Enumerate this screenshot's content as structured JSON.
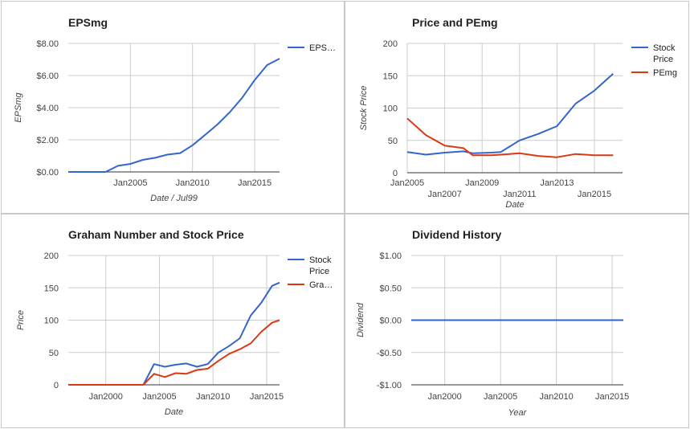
{
  "chart_data": [
    {
      "type": "line",
      "title": "EPSmg",
      "xlabel": "Date / Jul99",
      "ylabel": "EPSmg",
      "xlim": [
        2000,
        2017
      ],
      "ylim": [
        0,
        8
      ],
      "yticks": [
        0,
        2,
        4,
        6,
        8
      ],
      "ytick_labels": [
        "$0.00",
        "$2.00",
        "$4.00",
        "$6.00",
        "$8.00"
      ],
      "xticks": [
        2005,
        2010,
        2015
      ],
      "xtick_labels": [
        "Jan2005",
        "Jan2010",
        "Jan2015"
      ],
      "legend_position": "right",
      "series": [
        {
          "name": "EPS…",
          "color": "#3366cc",
          "x": [
            2000,
            2001,
            2002,
            2003,
            2004,
            2005,
            2006,
            2007,
            2008,
            2009,
            2010,
            2011,
            2012,
            2013,
            2014,
            2015,
            2016,
            2017
          ],
          "y": [
            0,
            0,
            0,
            0,
            0.38,
            0.5,
            0.75,
            0.88,
            1.08,
            1.17,
            1.66,
            2.3,
            2.95,
            3.72,
            4.62,
            5.72,
            6.65,
            7.05
          ]
        }
      ]
    },
    {
      "type": "line",
      "title": "Price and PEmg",
      "xlabel": "Date",
      "ylabel": "Stock Price",
      "xlim": [
        2005,
        2016.5
      ],
      "ylim": [
        0,
        200
      ],
      "yticks": [
        0,
        50,
        100,
        150,
        200
      ],
      "ytick_labels": [
        "0",
        "50",
        "100",
        "150",
        "200"
      ],
      "xticks": [
        2005,
        2007,
        2009,
        2011,
        2013,
        2015
      ],
      "xtick_labels": [
        "Jan2005",
        "Jan2007",
        "Jan2009",
        "Jan2011",
        "Jan2013",
        "Jan2015"
      ],
      "legend_position": "right",
      "series": [
        {
          "name": "Stock Price",
          "color": "#3366cc",
          "x": [
            2005,
            2006,
            2007,
            2008,
            2008.5,
            2009.5,
            2010,
            2011,
            2012,
            2013,
            2014,
            2015,
            2016
          ],
          "y": [
            32,
            28,
            31,
            33,
            30,
            31,
            32,
            50,
            60,
            72,
            107,
            127,
            153
          ]
        },
        {
          "name": "PEmg",
          "color": "#dc3912",
          "x": [
            2005,
            2006,
            2007,
            2008,
            2008.5,
            2009.5,
            2010,
            2011,
            2012,
            2013,
            2014,
            2015,
            2016
          ],
          "y": [
            84,
            58,
            42,
            38,
            27,
            27,
            28,
            30,
            26,
            24,
            29,
            27,
            27
          ]
        }
      ]
    },
    {
      "type": "line",
      "title": "Graham Number and Stock Price",
      "xlabel": "Date",
      "ylabel": "Price",
      "xlim": [
        1996.5,
        2016.2
      ],
      "ylim": [
        0,
        200
      ],
      "yticks": [
        0,
        50,
        100,
        150,
        200
      ],
      "ytick_labels": [
        "0",
        "50",
        "100",
        "150",
        "200"
      ],
      "xticks": [
        2000,
        2005,
        2010,
        2015
      ],
      "xtick_labels": [
        "Jan2000",
        "Jan2005",
        "Jan2010",
        "Jan2015"
      ],
      "legend_position": "right",
      "series": [
        {
          "name": "Stock Price",
          "color": "#3366cc",
          "x": [
            1996.5,
            2003.5,
            2004.5,
            2005.5,
            2006.5,
            2007.5,
            2008.5,
            2009.5,
            2010.5,
            2011.5,
            2012.5,
            2013.5,
            2014.5,
            2015.5,
            2016.2
          ],
          "y": [
            0,
            0,
            32,
            28,
            31,
            33,
            28,
            32,
            50,
            60,
            72,
            107,
            127,
            153,
            158
          ]
        },
        {
          "name": "Gra…",
          "color": "#dc3912",
          "x": [
            1996.5,
            2003.5,
            2004.5,
            2005.5,
            2006.5,
            2007.5,
            2008.5,
            2009.5,
            2010.5,
            2011.5,
            2012.5,
            2013.5,
            2014.5,
            2015.5,
            2016.2
          ],
          "y": [
            0,
            0,
            17,
            12,
            18,
            17,
            23,
            25,
            37,
            48,
            55,
            64,
            82,
            96,
            100
          ]
        }
      ]
    },
    {
      "type": "line",
      "title": "Dividend History",
      "xlabel": "Year",
      "ylabel": "Dividend",
      "xlim": [
        1997,
        2016
      ],
      "ylim": [
        -1,
        1
      ],
      "yticks": [
        -1,
        -0.5,
        0,
        0.5,
        1
      ],
      "ytick_labels": [
        "-$1.00",
        "-$0.50",
        "$0.00",
        "$0.50",
        "$1.00"
      ],
      "xticks": [
        2000,
        2005,
        2010,
        2015
      ],
      "xtick_labels": [
        "Jan2000",
        "Jan2005",
        "Jan2010",
        "Jan2015"
      ],
      "legend_position": "none",
      "series": [
        {
          "color": "#3366cc",
          "x": [
            1997,
            2016
          ],
          "y": [
            0,
            0
          ]
        }
      ]
    }
  ]
}
